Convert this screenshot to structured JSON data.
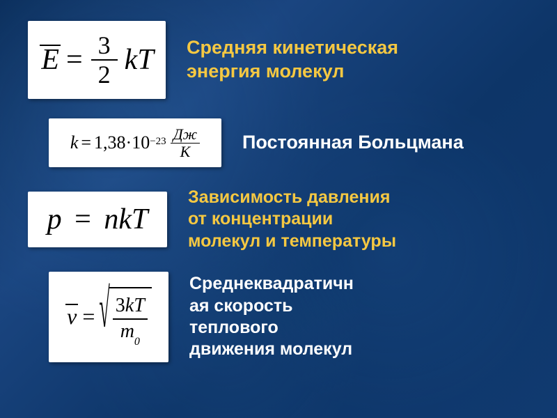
{
  "background": {
    "base_color": "#0d3568",
    "gradient_colors": [
      "#0a2d5a",
      "#1a4580",
      "#0d3568",
      "#103a70"
    ]
  },
  "formula_box": {
    "background": "#ffffff",
    "text_color": "#000000",
    "font_family": "Times New Roman"
  },
  "label_colors": {
    "yellow": "#f5c842",
    "white": "#ffffff"
  },
  "rows": [
    {
      "id": "kinetic-energy",
      "formula_symbols": {
        "lhs": "E",
        "numerator": "3",
        "denominator": "2",
        "rhs": "kT"
      },
      "box_size": [
        198,
        112
      ],
      "label_lines": [
        "Средняя кинетическая",
        "энергия молекул"
      ],
      "label_color": "yellow",
      "label_fontsize": 27
    },
    {
      "id": "boltzmann-constant",
      "formula_symbols": {
        "var": "k",
        "mantissa": "1,38",
        "exponent": "−23",
        "unit_num": "Дж",
        "unit_den": "K",
        "base": "10"
      },
      "box_size": [
        248,
        70
      ],
      "label_lines": [
        "Постоянная Больцмана"
      ],
      "label_color": "white",
      "label_fontsize": 27
    },
    {
      "id": "pressure",
      "formula_symbols": {
        "lhs": "p",
        "rhs": "nkT"
      },
      "box_size": [
        200,
        80
      ],
      "label_lines": [
        "Зависимость давления",
        "от концентрации",
        "молекул и температуры"
      ],
      "label_color": "yellow",
      "label_fontsize": 25
    },
    {
      "id": "rms-speed",
      "formula_symbols": {
        "lhs": "v",
        "num_3": "3",
        "num_k": "k",
        "num_t": "T",
        "den_m": "m",
        "den_sub": "0"
      },
      "box_size": [
        172,
        130
      ],
      "label_lines": [
        "Среднеквадратичн",
        "ая скорость",
        "теплового",
        "движения молекул"
      ],
      "label_color": "white",
      "label_fontsize": 25
    }
  ]
}
